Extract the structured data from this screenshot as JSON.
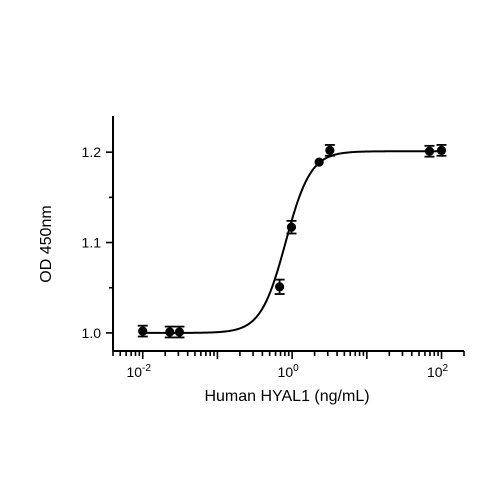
{
  "chart_data": {
    "type": "scatter",
    "x_scale": "log",
    "xlabel": "Human HYAL1 (ng/mL)",
    "ylabel": "OD 450nm",
    "xlim": [
      0.004,
      200
    ],
    "ylim": [
      0.98,
      1.24
    ],
    "y_ticks": [
      1.0,
      1.1,
      1.2
    ],
    "y_tick_labels": [
      "1.0",
      "1.1",
      "1.2"
    ],
    "x_major_ticks": [
      {
        "value": 0.01,
        "base": "10",
        "exp": "-2"
      },
      {
        "value": 1,
        "base": "10",
        "exp": "0"
      },
      {
        "value": 100,
        "base": "10",
        "exp": "2"
      }
    ],
    "grid": false,
    "legend": "none",
    "series": [
      {
        "points": [
          {
            "x": 0.01,
            "y": 1.002,
            "err": 0.006
          },
          {
            "x": 0.023,
            "y": 1.001,
            "err": 0.006
          },
          {
            "x": 0.031,
            "y": 1.001,
            "err": 0.006
          },
          {
            "x": 0.68,
            "y": 1.051,
            "err": 0.008
          },
          {
            "x": 0.98,
            "y": 1.117,
            "err": 0.007
          },
          {
            "x": 2.3,
            "y": 1.189,
            "err": 0.0
          },
          {
            "x": 3.2,
            "y": 1.202,
            "err": 0.006
          },
          {
            "x": 69,
            "y": 1.201,
            "err": 0.006
          },
          {
            "x": 100,
            "y": 1.202,
            "err": 0.006
          }
        ],
        "fit": {
          "model": "4PL",
          "bottom": 1.0,
          "top": 1.201,
          "ec50": 0.82,
          "hill": 2.6
        }
      }
    ]
  }
}
